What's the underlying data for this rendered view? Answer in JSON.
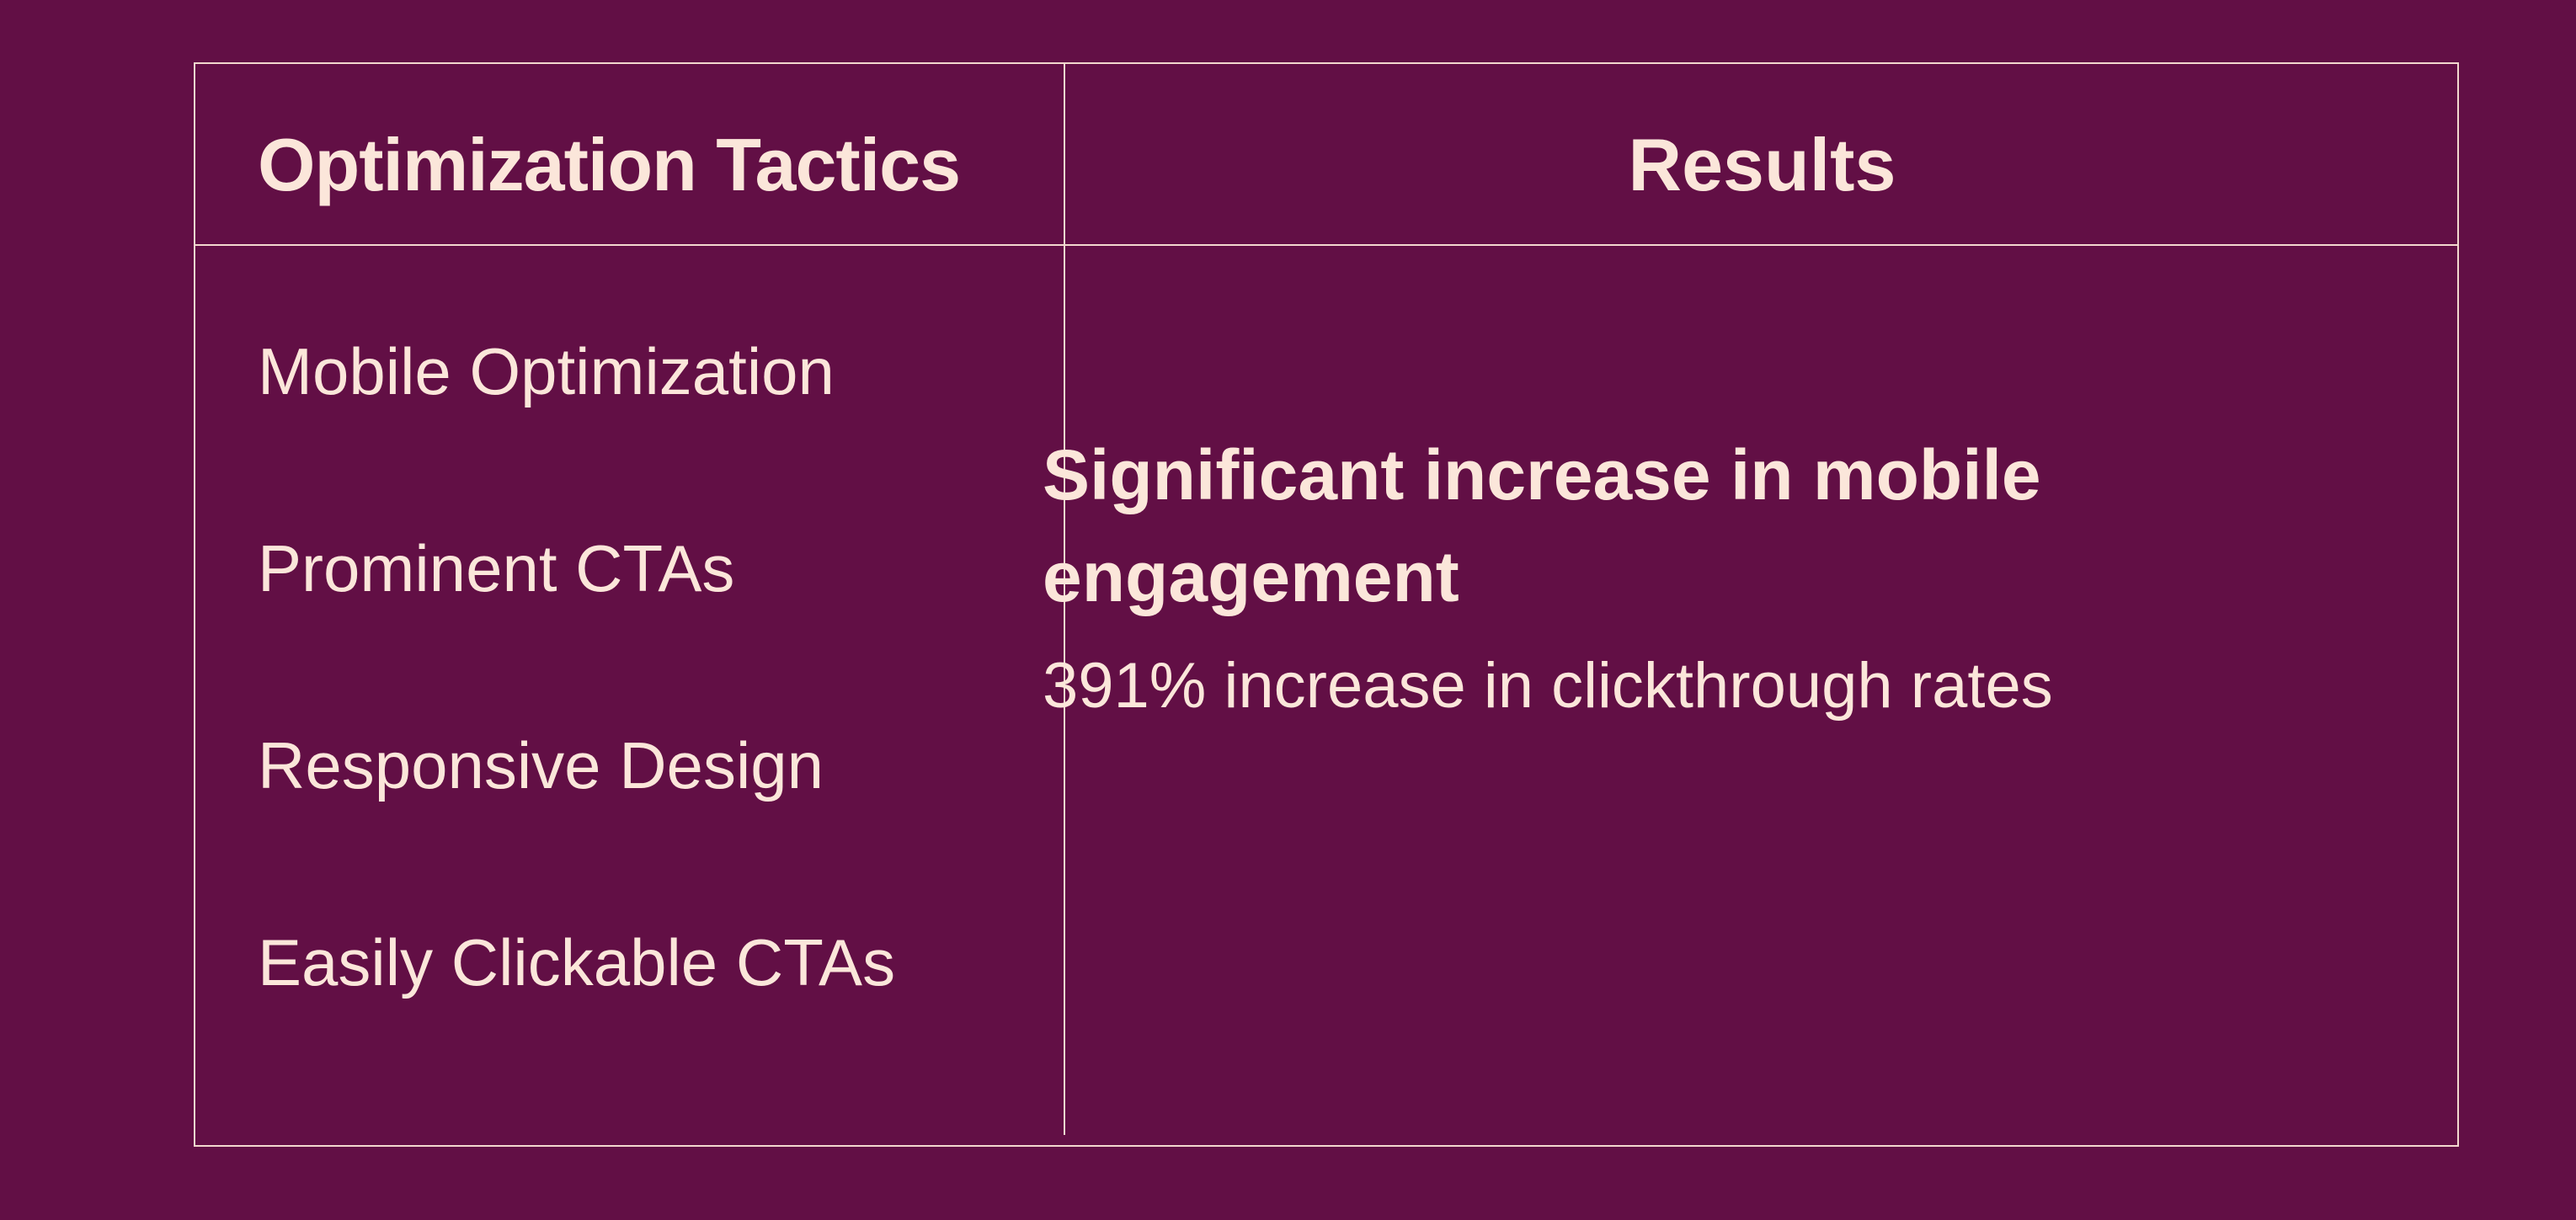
{
  "table": {
    "headers": {
      "tactics": "Optimization Tactics",
      "results": "Results"
    },
    "tactics": [
      "Mobile Optimization",
      "Prominent CTAs",
      "Responsive Design",
      "Easily Clickable CTAs"
    ],
    "results": {
      "headline": "Significant increase in mobile engagement",
      "detail": "391% increase in clickthrough rates"
    }
  },
  "colors": {
    "background": "#620f45",
    "text": "#fbe6da",
    "lines": "#f3d8cf"
  }
}
